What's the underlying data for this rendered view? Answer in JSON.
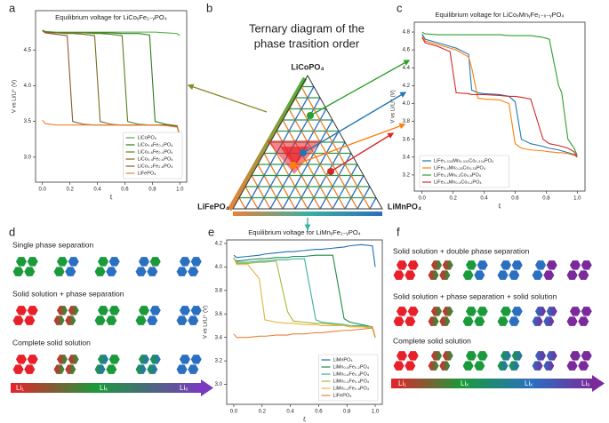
{
  "panel_labels": [
    "a",
    "b",
    "c",
    "d",
    "e",
    "f"
  ],
  "chart_data": [
    {
      "type": "line",
      "title": "Equilibrium voltage for LiCoᵧFe₁₋ᵧPO₄",
      "x_label": "ξ",
      "y_label": "V vs Li/Li⁺ (V)",
      "x": [
        0,
        0.02,
        0.1,
        0.18,
        0.22,
        0.3,
        0.38,
        0.42,
        0.5,
        0.58,
        0.62,
        0.7,
        0.78,
        0.82,
        0.9,
        0.98,
        1.0
      ],
      "series": [
        {
          "name": "LiCoPO₄",
          "color": "#4caf3e",
          "values": [
            4.78,
            4.76,
            4.75,
            4.75,
            4.75,
            4.75,
            4.75,
            4.75,
            4.75,
            4.75,
            4.75,
            4.75,
            4.75,
            4.75,
            4.74,
            4.73,
            4.7
          ]
        },
        {
          "name": "LiCo₀.₈Fe₀.₂PO₄",
          "color": "#2e7d1f",
          "values": [
            4.77,
            4.75,
            4.74,
            4.74,
            4.74,
            4.74,
            4.74,
            4.74,
            4.74,
            4.73,
            4.73,
            4.73,
            4.71,
            3.5,
            3.46,
            3.44,
            3.3
          ]
        },
        {
          "name": "LiCo₀.₆Fe₀.₄PO₄",
          "color": "#5a7d1e",
          "values": [
            4.77,
            4.75,
            4.74,
            4.74,
            4.74,
            4.74,
            4.73,
            4.73,
            4.72,
            4.7,
            3.5,
            3.46,
            3.45,
            3.45,
            3.45,
            3.43,
            3.3
          ]
        },
        {
          "name": "LiCo₀.₄Fe₀.₆PO₄",
          "color": "#7a6a22",
          "values": [
            4.77,
            4.75,
            4.74,
            4.73,
            4.73,
            4.72,
            4.7,
            3.5,
            3.46,
            3.45,
            3.45,
            3.45,
            3.45,
            3.45,
            3.45,
            3.43,
            3.3
          ]
        },
        {
          "name": "LiCo₀.₂Fe₀.₈PO₄",
          "color": "#8c5a26",
          "values": [
            4.77,
            4.74,
            4.72,
            4.7,
            3.5,
            3.46,
            3.45,
            3.45,
            3.45,
            3.45,
            3.45,
            3.45,
            3.45,
            3.45,
            3.45,
            3.43,
            3.3
          ]
        },
        {
          "name": "LiFePO₄",
          "color": "#e8823a",
          "values": [
            3.52,
            3.47,
            3.45,
            3.45,
            3.45,
            3.45,
            3.45,
            3.45,
            3.45,
            3.45,
            3.45,
            3.45,
            3.45,
            3.45,
            3.44,
            3.42,
            3.3
          ]
        }
      ],
      "xlim": [
        -0.05,
        1.05
      ],
      "ylim": [
        2.65,
        5.05
      ],
      "xticks": [
        {
          "value": 0,
          "label": "0.0"
        },
        0.2,
        0.4,
        0.6,
        0.8,
        {
          "value": 1,
          "label": "1.0"
        }
      ],
      "yticks": [
        {
          "value": 3,
          "label": "3.0"
        },
        3.5,
        {
          "value": 4,
          "label": "4.0"
        },
        4.5
      ],
      "legend": "lower right"
    },
    {
      "type": "line",
      "title": "Equilibrium voltage for LiCoₓMnᵧFe₁₋ₓ₋ᵧPO₄",
      "x_label": "ξ",
      "y_label": "V vs Li/Li⁺ (V)",
      "x": [
        0,
        0.02,
        0.1,
        0.18,
        0.22,
        0.3,
        0.32,
        0.36,
        0.4,
        0.5,
        0.56,
        0.6,
        0.64,
        0.7,
        0.78,
        0.82,
        0.88,
        0.9,
        0.94,
        0.98,
        1.0
      ],
      "series": [
        {
          "name": "LiFe₀.₃₃₃Mn₀.₃₃₃Co₀.₃₃₄PO₄",
          "color": "#1f77b4",
          "values": [
            4.78,
            4.72,
            4.68,
            4.64,
            4.62,
            4.55,
            4.15,
            4.12,
            4.11,
            4.1,
            4.08,
            4.02,
            3.6,
            3.55,
            3.52,
            3.5,
            3.48,
            3.47,
            3.45,
            3.43,
            3.4
          ]
        },
        {
          "name": "LiFe₀.₄Mn₀.₂₅Co₀.₃₅PO₄",
          "color": "#ff7f0e",
          "values": [
            4.76,
            4.7,
            4.66,
            4.62,
            4.6,
            4.52,
            4.4,
            4.06,
            4.05,
            4.04,
            4.0,
            3.55,
            3.5,
            3.48,
            3.47,
            3.46,
            3.45,
            3.45,
            3.44,
            3.42,
            3.4
          ]
        },
        {
          "name": "LiFe₀.₁Mn₀.₁Co₀.₈PO₄",
          "color": "#2ca02c",
          "values": [
            4.8,
            4.78,
            4.77,
            4.77,
            4.77,
            4.77,
            4.77,
            4.77,
            4.77,
            4.77,
            4.76,
            4.76,
            4.76,
            4.76,
            4.74,
            4.72,
            4.2,
            4.12,
            3.6,
            3.5,
            3.42
          ]
        },
        {
          "name": "LiFe₀.₄Mn₀.₄Co₀.₂PO₄",
          "color": "#d62728",
          "values": [
            4.74,
            4.68,
            4.64,
            4.58,
            4.12,
            4.11,
            4.1,
            4.1,
            4.1,
            4.09,
            4.08,
            4.08,
            4.07,
            4.05,
            3.6,
            3.55,
            3.53,
            3.52,
            3.5,
            3.46,
            3.4
          ]
        }
      ],
      "xlim": [
        -0.05,
        1.05
      ],
      "ylim": [
        3.02,
        4.91
      ],
      "xticks": [
        {
          "value": 0,
          "label": "0.0"
        },
        0.2,
        0.4,
        0.6,
        0.8,
        {
          "value": 1,
          "label": "1.0"
        }
      ],
      "yticks": [
        3.2,
        3.4,
        3.6,
        3.8,
        {
          "value": 4,
          "label": "4.0"
        },
        4.2,
        4.4,
        4.6,
        4.8
      ],
      "legend": "lower left"
    },
    {
      "type": "line",
      "title": "Equilibrium voltage for LiMnᵧFe₁₋ᵧPO₄",
      "x_label": "ξ",
      "y_label": "V vs Li/Li⁺ (V)",
      "x": [
        0,
        0.02,
        0.1,
        0.18,
        0.22,
        0.3,
        0.38,
        0.42,
        0.5,
        0.58,
        0.62,
        0.7,
        0.78,
        0.82,
        0.9,
        0.98,
        1.0
      ],
      "series": [
        {
          "name": "LiMnPO₄",
          "color": "#1f6fb4",
          "values": [
            4.1,
            4.08,
            4.09,
            4.1,
            4.11,
            4.12,
            4.13,
            4.13,
            4.14,
            4.15,
            4.15,
            4.16,
            4.17,
            4.18,
            4.19,
            4.18,
            4.0
          ]
        },
        {
          "name": "LiMn₀.₈Fe₀.₂PO₄",
          "color": "#1d8a4a",
          "values": [
            4.07,
            4.05,
            4.06,
            4.07,
            4.07,
            4.08,
            4.08,
            4.09,
            4.09,
            4.1,
            4.1,
            4.1,
            3.56,
            3.53,
            3.51,
            3.49,
            3.4
          ]
        },
        {
          "name": "LiMn₀.₆Fe₀.₄PO₄",
          "color": "#3ab0a0",
          "values": [
            4.08,
            4.04,
            4.04,
            4.05,
            4.05,
            4.06,
            4.06,
            4.07,
            4.07,
            3.55,
            3.53,
            3.52,
            3.51,
            3.5,
            3.5,
            3.49,
            3.4
          ]
        },
        {
          "name": "LiMn₀.₄Fe₀.₆PO₄",
          "color": "#a8b83a",
          "values": [
            4.08,
            4.03,
            4.03,
            4.04,
            4.04,
            4.05,
            3.62,
            3.54,
            3.53,
            3.52,
            3.52,
            3.51,
            3.5,
            3.5,
            3.49,
            3.49,
            3.4
          ]
        },
        {
          "name": "LiMn₀.₂Fe₀.₈PO₄",
          "color": "#e6b43a",
          "values": [
            4.08,
            4.02,
            4.02,
            3.9,
            3.55,
            3.53,
            3.52,
            3.52,
            3.51,
            3.51,
            3.5,
            3.5,
            3.5,
            3.49,
            3.49,
            3.48,
            3.4
          ]
        },
        {
          "name": "LiFePO₄",
          "color": "#e8823a",
          "values": [
            3.43,
            3.4,
            3.4,
            3.41,
            3.41,
            3.42,
            3.42,
            3.43,
            3.43,
            3.44,
            3.44,
            3.45,
            3.46,
            3.46,
            3.47,
            3.48,
            3.4
          ]
        }
      ],
      "xlim": [
        -0.05,
        1.05
      ],
      "ylim": [
        2.83,
        4.23
      ],
      "xticks": [
        {
          "value": 0,
          "label": "0.0"
        },
        0.2,
        0.4,
        0.6,
        0.8,
        {
          "value": 1,
          "label": "1.0"
        }
      ],
      "yticks": [
        {
          "value": 3,
          "label": "3.0"
        },
        3.2,
        3.4,
        3.6,
        3.8,
        {
          "value": 4,
          "label": "4.0"
        },
        4.2
      ],
      "legend": "lower right"
    }
  ],
  "ternary": {
    "title": [
      "Ternary diagram of the",
      "phase trasition order"
    ],
    "vertices": [
      "LiCoPO₄",
      "LiFePO₄",
      "LiMnPO₄"
    ]
  },
  "schematic_d": {
    "rows": [
      "Single phase separation",
      "Solid solution + phase separation",
      "Complete solid solution"
    ],
    "arrow_labels": [
      "Li₁",
      "Liₓ",
      "Li₀"
    ]
  },
  "schematic_f": {
    "rows": [
      "Solid solution + double phase separation",
      "Solid solution + phase separation + solid solution",
      "Complete solid solution"
    ],
    "arrow_labels": [
      "Li₁",
      "Liₓ",
      "Liₓ",
      "Li₀"
    ]
  }
}
